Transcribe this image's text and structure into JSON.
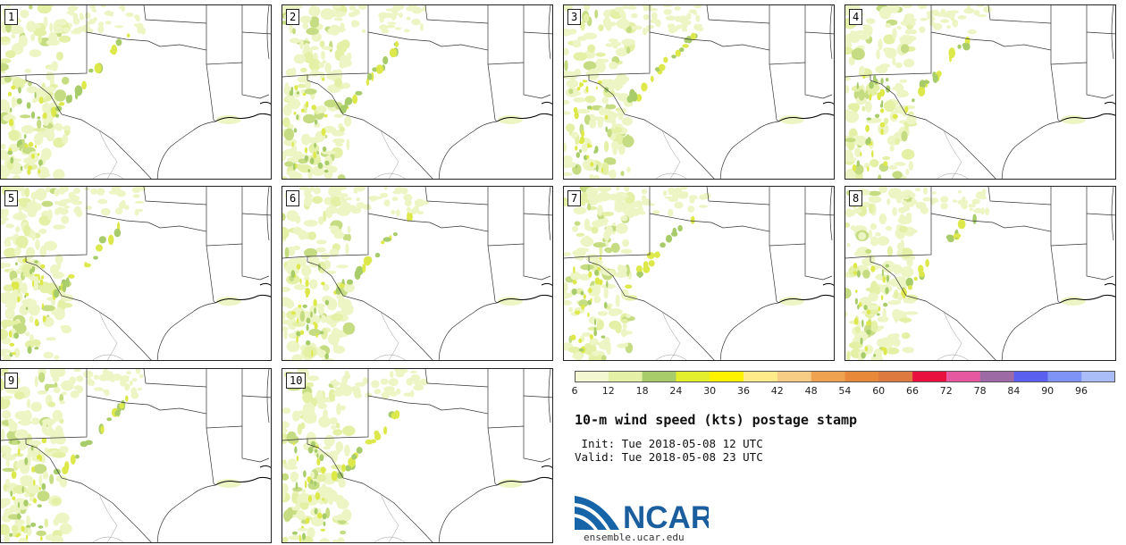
{
  "panels": [
    "1",
    "2",
    "3",
    "4",
    "5",
    "6",
    "7",
    "8",
    "9",
    "10"
  ],
  "colorbar": {
    "colors": [
      "#f3f7d2",
      "#e4f0a6",
      "#a9cc6a",
      "#e3ee2c",
      "#fff200",
      "#ffeb8a",
      "#f7cd85",
      "#efa24f",
      "#e8893a",
      "#dc7a40",
      "#e8103f",
      "#e659a0",
      "#9e6aa6",
      "#5a5ff0",
      "#7f92f5",
      "#aabdf8"
    ],
    "tick_labels": [
      "6",
      "12",
      "18",
      "24",
      "30",
      "36",
      "42",
      "48",
      "54",
      "60",
      "66",
      "72",
      "78",
      "84",
      "90",
      "96"
    ]
  },
  "title": "10-m wind speed (kts) postage stamp",
  "init": " Init: Tue 2018-05-08 12 UTC",
  "valid": "Valid: Tue 2018-05-08 23 UTC",
  "logo": {
    "text": "NCAR",
    "url": "ensemble.ucar.edu",
    "colors": {
      "blue": "#1565a8",
      "text": "#1b5e9e"
    }
  }
}
